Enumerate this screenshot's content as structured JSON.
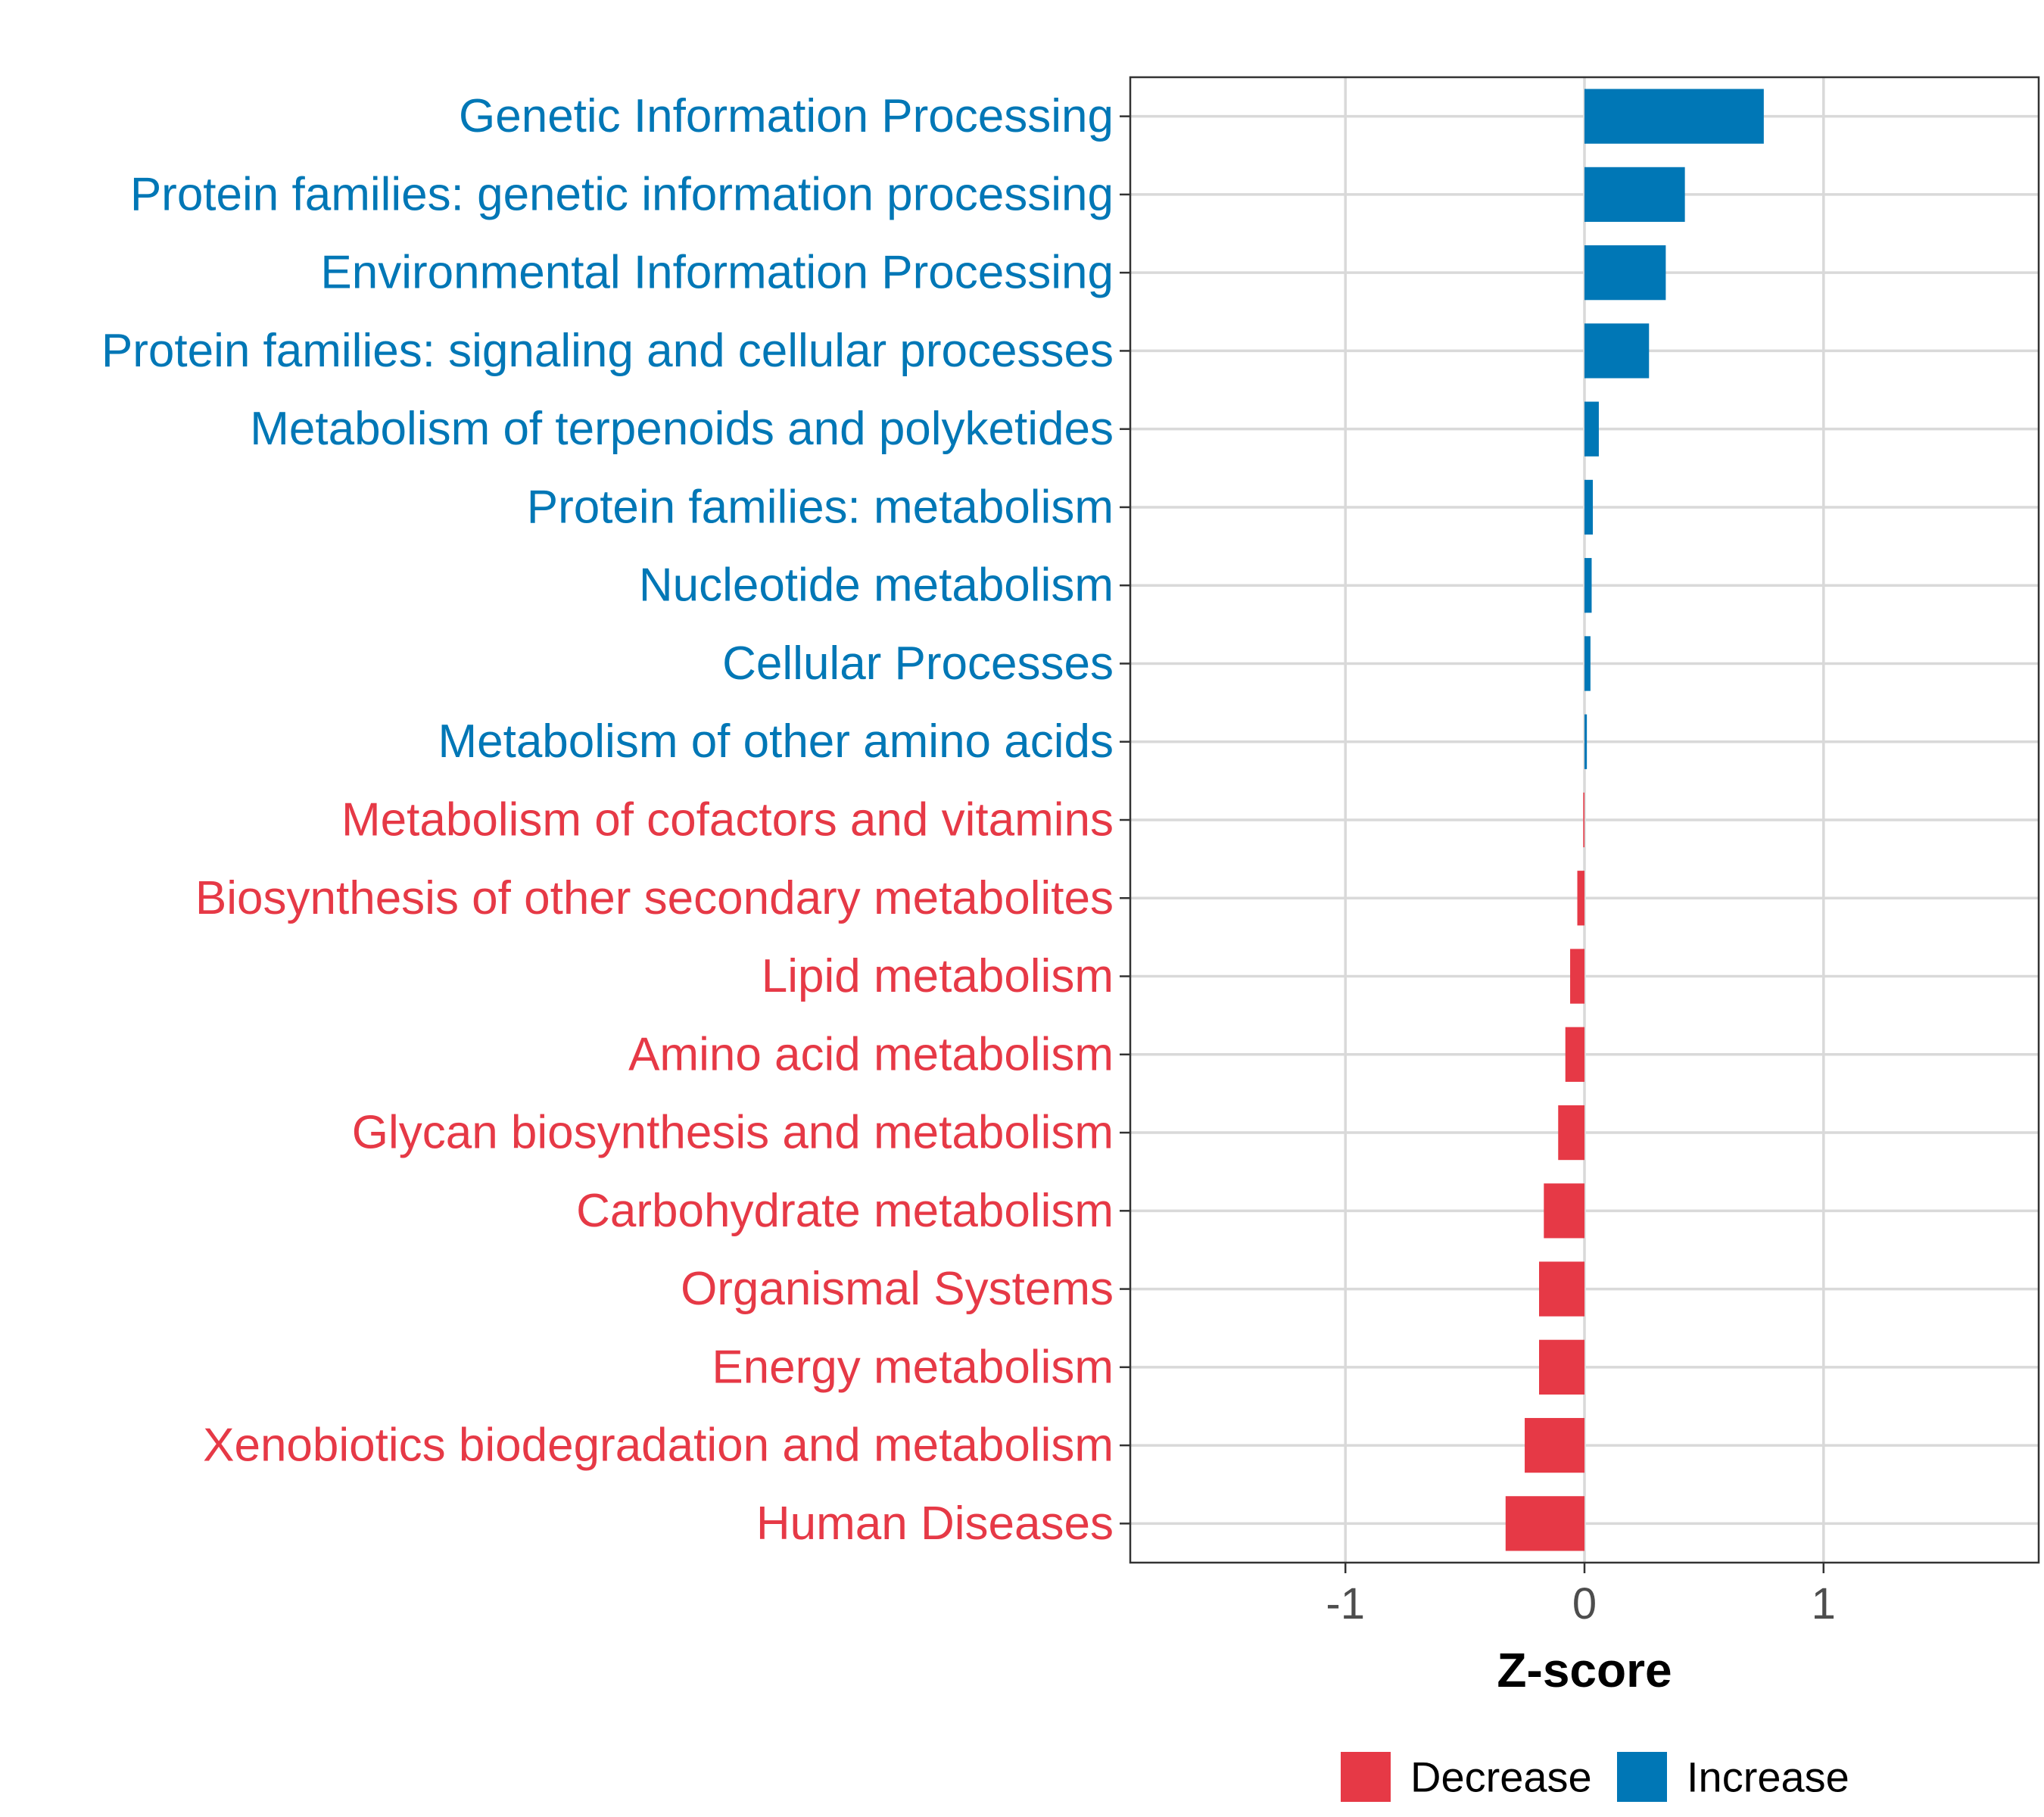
{
  "chart_data": {
    "type": "bar",
    "orientation": "horizontal",
    "xlabel": "Z-score",
    "ylabel": "",
    "xlim": [
      -1.9,
      1.9
    ],
    "xticks": [
      -1,
      0,
      1
    ],
    "xtick_labels": [
      "-1",
      "0",
      "1"
    ],
    "grid": true,
    "legend_position": "bottom",
    "colors": {
      "Decrease": "#e63946",
      "Increase": "#0077b6"
    },
    "legend": [
      {
        "key": "Decrease",
        "label": "Decrease"
      },
      {
        "key": "Increase",
        "label": "Increase"
      }
    ],
    "categories": [
      "Genetic Information Processing",
      "Protein families: genetic information processing",
      "Environmental Information Processing",
      "Protein families: signaling and cellular processes",
      "Metabolism of terpenoids and polyketides",
      "Protein families: metabolism",
      "Nucleotide metabolism",
      "Cellular Processes",
      "Metabolism of other amino acids",
      "Metabolism of cofactors and vitamins",
      "Biosynthesis of other secondary metabolites",
      "Lipid metabolism",
      "Amino acid metabolism",
      "Glycan biosynthesis and metabolism",
      "Carbohydrate metabolism",
      "Organismal Systems",
      "Energy metabolism",
      "Xenobiotics biodegradation and metabolism",
      "Human Diseases"
    ],
    "values": [
      0.75,
      0.42,
      0.34,
      0.27,
      0.06,
      0.035,
      0.03,
      0.025,
      0.01,
      -0.005,
      -0.03,
      -0.06,
      -0.08,
      -0.11,
      -0.17,
      -0.19,
      -0.19,
      -0.25,
      -0.33
    ],
    "direction": [
      "Increase",
      "Increase",
      "Increase",
      "Increase",
      "Increase",
      "Increase",
      "Increase",
      "Increase",
      "Increase",
      "Decrease",
      "Decrease",
      "Decrease",
      "Decrease",
      "Decrease",
      "Decrease",
      "Decrease",
      "Decrease",
      "Decrease",
      "Decrease"
    ]
  }
}
